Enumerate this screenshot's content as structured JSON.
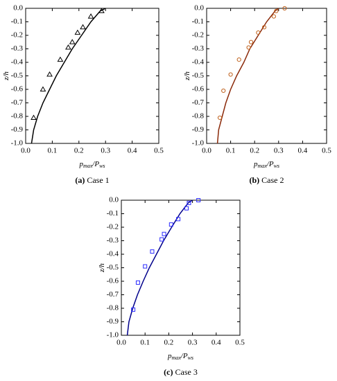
{
  "chart_data": [
    {
      "type": "line",
      "caption_label": "(a)",
      "caption": "Case 1",
      "ylabel": [
        "z",
        "/h"
      ],
      "xlabel": [
        "p",
        "max",
        "/P",
        "ws"
      ],
      "xlim": [
        0,
        0.5
      ],
      "ylim": [
        -1,
        0
      ],
      "xticks": [
        {
          "value": 0,
          "label": "0.0"
        },
        0.1,
        0.2,
        0.3,
        0.4,
        0.5
      ],
      "yticks": [
        {
          "value": 0,
          "label": "0.0"
        },
        -0.1,
        -0.2,
        -0.3,
        -0.4,
        -0.5,
        -0.6,
        -0.7,
        -0.8,
        -0.9,
        {
          "value": -1,
          "label": "-1.0"
        }
      ],
      "series": [
        {
          "type": "line",
          "color": "#000000",
          "x": [
            0.022,
            0.03,
            0.045,
            0.065,
            0.09,
            0.115,
            0.145,
            0.175,
            0.21,
            0.245,
            0.28,
            0.3
          ],
          "values": [
            -1,
            -0.9,
            -0.8,
            -0.7,
            -0.6,
            -0.5,
            -0.4,
            -0.3,
            -0.2,
            -0.1,
            -0.02,
            0
          ]
        },
        {
          "type": "scatter",
          "marker": "triangle",
          "color": "#000000",
          "x": [
            0.285,
            0.245,
            0.215,
            0.195,
            0.175,
            0.16,
            0.13,
            0.09,
            0.065,
            0.03
          ],
          "values": [
            -0.02,
            -0.06,
            -0.14,
            -0.18,
            -0.25,
            -0.29,
            -0.38,
            -0.49,
            -0.6,
            -0.81
          ]
        }
      ]
    },
    {
      "type": "line",
      "caption_label": "(b)",
      "caption": "Case 2",
      "ylabel": [
        "z",
        "/h"
      ],
      "xlabel": [
        "p",
        "max",
        "/P",
        "ws"
      ],
      "xlim": [
        0,
        0.5
      ],
      "ylim": [
        -1,
        0
      ],
      "xticks": [
        {
          "value": 0,
          "label": "0.0"
        },
        0.1,
        0.2,
        0.3,
        0.4,
        0.5
      ],
      "yticks": [
        {
          "value": 0,
          "label": "0.0"
        },
        -0.1,
        -0.2,
        -0.3,
        -0.4,
        -0.5,
        -0.6,
        -0.7,
        -0.8,
        -0.9,
        {
          "value": -1,
          "label": "-1.0"
        }
      ],
      "series": [
        {
          "type": "line",
          "color": "#8b2a0a",
          "x": [
            0.045,
            0.05,
            0.065,
            0.08,
            0.1,
            0.125,
            0.155,
            0.18,
            0.215,
            0.25,
            0.285,
            0.3
          ],
          "values": [
            -1,
            -0.9,
            -0.8,
            -0.7,
            -0.6,
            -0.5,
            -0.4,
            -0.3,
            -0.2,
            -0.1,
            -0.02,
            0
          ]
        },
        {
          "type": "scatter",
          "marker": "circle",
          "color": "#c0621e",
          "x": [
            0.325,
            0.29,
            0.28,
            0.24,
            0.215,
            0.185,
            0.175,
            0.135,
            0.1,
            0.07,
            0.055
          ],
          "values": [
            0,
            -0.02,
            -0.06,
            -0.14,
            -0.18,
            -0.25,
            -0.29,
            -0.38,
            -0.49,
            -0.61,
            -0.81
          ]
        }
      ]
    },
    {
      "type": "line",
      "caption_label": "(c)",
      "caption": "Case 3",
      "ylabel": [
        "z",
        "/h"
      ],
      "xlabel": [
        "p",
        "max",
        "/P",
        "ws"
      ],
      "xlim": [
        0,
        0.5
      ],
      "ylim": [
        -1,
        0
      ],
      "xticks": [
        {
          "value": 0,
          "label": "0.0"
        },
        0.1,
        0.2,
        0.3,
        0.4,
        0.5
      ],
      "yticks": [
        {
          "value": 0,
          "label": "0.0"
        },
        -0.1,
        -0.2,
        -0.3,
        -0.4,
        -0.5,
        -0.6,
        -0.7,
        -0.8,
        -0.9,
        {
          "value": -1,
          "label": "-1.0"
        }
      ],
      "series": [
        {
          "type": "line",
          "color": "#00008b",
          "x": [
            0.025,
            0.032,
            0.048,
            0.068,
            0.092,
            0.118,
            0.148,
            0.178,
            0.212,
            0.247,
            0.282,
            0.3
          ],
          "values": [
            -1,
            -0.9,
            -0.8,
            -0.7,
            -0.6,
            -0.5,
            -0.4,
            -0.3,
            -0.2,
            -0.1,
            -0.02,
            0
          ]
        },
        {
          "type": "scatter",
          "marker": "square",
          "color": "#2b2bff",
          "x": [
            0.325,
            0.285,
            0.275,
            0.24,
            0.21,
            0.18,
            0.17,
            0.13,
            0.1,
            0.07,
            0.05
          ],
          "values": [
            0,
            -0.02,
            -0.06,
            -0.14,
            -0.18,
            -0.25,
            -0.29,
            -0.38,
            -0.49,
            -0.61,
            -0.81
          ]
        }
      ]
    }
  ]
}
